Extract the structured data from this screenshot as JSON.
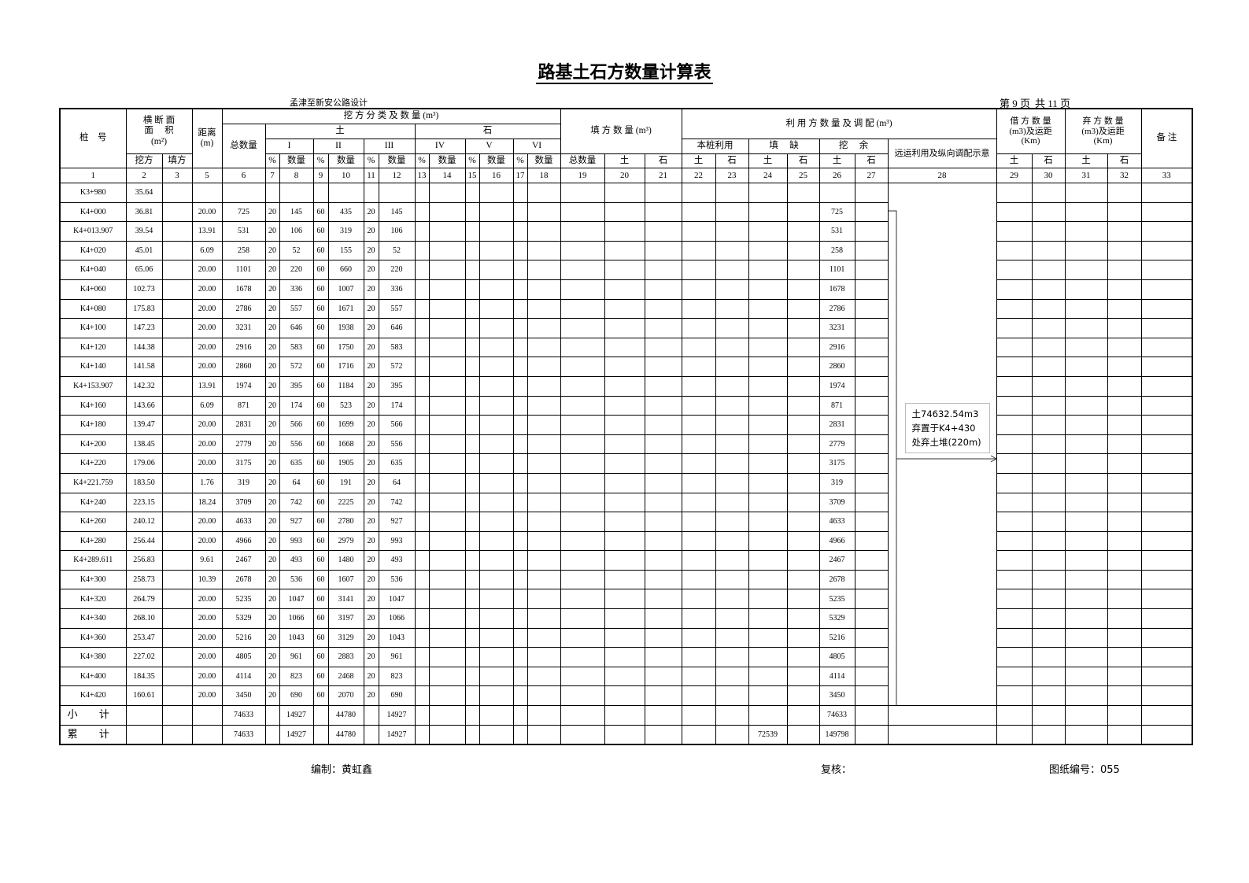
{
  "title": "路基土石方数量计算表",
  "project": "孟津至新安公路设计",
  "page": {
    "current": "第 9 页",
    "total": "共 11 页"
  },
  "header": {
    "station": "桩　号",
    "section_area": "横 断 面",
    "section_area2": "面　 积",
    "section_area_unit": "(m²)",
    "distance": "距离",
    "distance_unit": "(m)",
    "cut_class": "挖 方 分 类 及 数 量 (m³)",
    "soil": "土",
    "rock": "石",
    "total_qty": "总数量",
    "fill_qty": "填 方 数 量 (m³)",
    "usage": "利 用 方 数 量 及 调 配 (m³)",
    "borrow": "借 方 数 量",
    "borrow2": "(m3)及运距",
    "borrow3": "(Km)",
    "waste": "弃 方 数 量",
    "waste2": "(m3)及运距",
    "waste3": "(Km)",
    "remark": "备 注",
    "grades": [
      "I",
      "II",
      "III",
      "IV",
      "V",
      "VI"
    ],
    "own_use": "本桩利用",
    "shortage": "填　 缺",
    "surplus": "挖　 余",
    "haul": "远运利用及纵向调配示意",
    "cut": "挖方",
    "fill": "填方",
    "pct": "%",
    "qty": "数量",
    "fill_total": "总数量",
    "soil_s": "土",
    "rock_s": "石",
    "col_numbers": [
      "1",
      "2",
      "3",
      "5",
      "6",
      "7",
      "8",
      "9",
      "10",
      "11",
      "12",
      "13",
      "14",
      "15",
      "16",
      "17",
      "18",
      "19",
      "20",
      "21",
      "22",
      "23",
      "24",
      "25",
      "26",
      "27",
      "28",
      "29",
      "30",
      "31",
      "32",
      "33"
    ]
  },
  "rows": [
    [
      "K3+980",
      "35.64",
      "",
      "",
      "",
      "",
      "",
      "",
      "",
      "",
      ""
    ],
    [
      "K4+000",
      "36.81",
      "20.00",
      "725",
      "20",
      "145",
      "60",
      "435",
      "20",
      "145",
      "725"
    ],
    [
      "K4+013.907",
      "39.54",
      "13.91",
      "531",
      "20",
      "106",
      "60",
      "319",
      "20",
      "106",
      "531"
    ],
    [
      "K4+020",
      "45.01",
      "6.09",
      "258",
      "20",
      "52",
      "60",
      "155",
      "20",
      "52",
      "258"
    ],
    [
      "K4+040",
      "65.06",
      "20.00",
      "1101",
      "20",
      "220",
      "60",
      "660",
      "20",
      "220",
      "1101"
    ],
    [
      "K4+060",
      "102.73",
      "20.00",
      "1678",
      "20",
      "336",
      "60",
      "1007",
      "20",
      "336",
      "1678"
    ],
    [
      "K4+080",
      "175.83",
      "20.00",
      "2786",
      "20",
      "557",
      "60",
      "1671",
      "20",
      "557",
      "2786"
    ],
    [
      "K4+100",
      "147.23",
      "20.00",
      "3231",
      "20",
      "646",
      "60",
      "1938",
      "20",
      "646",
      "3231"
    ],
    [
      "K4+120",
      "144.38",
      "20.00",
      "2916",
      "20",
      "583",
      "60",
      "1750",
      "20",
      "583",
      "2916"
    ],
    [
      "K4+140",
      "141.58",
      "20.00",
      "2860",
      "20",
      "572",
      "60",
      "1716",
      "20",
      "572",
      "2860"
    ],
    [
      "K4+153.907",
      "142.32",
      "13.91",
      "1974",
      "20",
      "395",
      "60",
      "1184",
      "20",
      "395",
      "1974"
    ],
    [
      "K4+160",
      "143.66",
      "6.09",
      "871",
      "20",
      "174",
      "60",
      "523",
      "20",
      "174",
      "871"
    ],
    [
      "K4+180",
      "139.47",
      "20.00",
      "2831",
      "20",
      "566",
      "60",
      "1699",
      "20",
      "566",
      "2831"
    ],
    [
      "K4+200",
      "138.45",
      "20.00",
      "2779",
      "20",
      "556",
      "60",
      "1668",
      "20",
      "556",
      "2779"
    ],
    [
      "K4+220",
      "179.06",
      "20.00",
      "3175",
      "20",
      "635",
      "60",
      "1905",
      "20",
      "635",
      "3175"
    ],
    [
      "K4+221.759",
      "183.50",
      "1.76",
      "319",
      "20",
      "64",
      "60",
      "191",
      "20",
      "64",
      "319"
    ],
    [
      "K4+240",
      "223.15",
      "18.24",
      "3709",
      "20",
      "742",
      "60",
      "2225",
      "20",
      "742",
      "3709"
    ],
    [
      "K4+260",
      "240.12",
      "20.00",
      "4633",
      "20",
      "927",
      "60",
      "2780",
      "20",
      "927",
      "4633"
    ],
    [
      "K4+280",
      "256.44",
      "20.00",
      "4966",
      "20",
      "993",
      "60",
      "2979",
      "20",
      "993",
      "4966"
    ],
    [
      "K4+289.611",
      "256.83",
      "9.61",
      "2467",
      "20",
      "493",
      "60",
      "1480",
      "20",
      "493",
      "2467"
    ],
    [
      "K4+300",
      "258.73",
      "10.39",
      "2678",
      "20",
      "536",
      "60",
      "1607",
      "20",
      "536",
      "2678"
    ],
    [
      "K4+320",
      "264.79",
      "20.00",
      "5235",
      "20",
      "1047",
      "60",
      "3141",
      "20",
      "1047",
      "5235"
    ],
    [
      "K4+340",
      "268.10",
      "20.00",
      "5329",
      "20",
      "1066",
      "60",
      "3197",
      "20",
      "1066",
      "5329"
    ],
    [
      "K4+360",
      "253.47",
      "20.00",
      "5216",
      "20",
      "1043",
      "60",
      "3129",
      "20",
      "1043",
      "5216"
    ],
    [
      "K4+380",
      "227.02",
      "20.00",
      "4805",
      "20",
      "961",
      "60",
      "2883",
      "20",
      "961",
      "4805"
    ],
    [
      "K4+400",
      "184.35",
      "20.00",
      "4114",
      "20",
      "823",
      "60",
      "2468",
      "20",
      "823",
      "4114"
    ],
    [
      "K4+420",
      "160.61",
      "20.00",
      "3450",
      "20",
      "690",
      "60",
      "2070",
      "20",
      "690",
      "3450"
    ]
  ],
  "totals": [
    {
      "label": "小计",
      "c6": "74633",
      "c8": "14927",
      "c10": "44780",
      "c12": "14927",
      "c24": "",
      "c26": "74633"
    },
    {
      "label": "累计",
      "c6": "74633",
      "c8": "14927",
      "c10": "44780",
      "c12": "14927",
      "c24": "72539",
      "c26": "149798"
    }
  ],
  "haul_note": [
    "土74632.54m3",
    "弃置于K4+430",
    "处弃土堆(220m)"
  ],
  "footer": {
    "compiled": "编制：黄虹鑫",
    "checked": "复核：",
    "drawing_no": "图纸编号：055"
  }
}
